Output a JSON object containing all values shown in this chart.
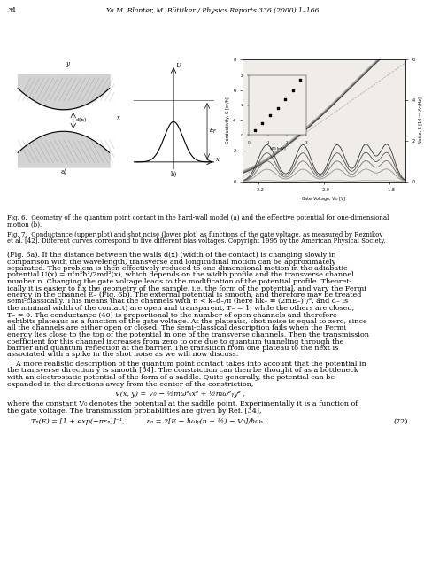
{
  "page_number": "34",
  "header": "Ya.M. Blanter, M. Büttiker / Physics Reports 336 (2000) 1–166",
  "fig6_caption": "Fig. 6.  Geometry of the quantum point contact in the hard-wall model (a) and the effective potential for one-dimensional\nmotion (b).",
  "fig7_caption": "Fig. 7.  Conductance (upper plot) and shot noise (lower plot) as functions of the gate voltage, as measured by Reznikov\net al. [42]. Different curves correspond to five different bias voltages. Copyright 1995 by the American Physical Society.",
  "bg_color": "#ffffff",
  "plot_bg": "#f0ede8"
}
